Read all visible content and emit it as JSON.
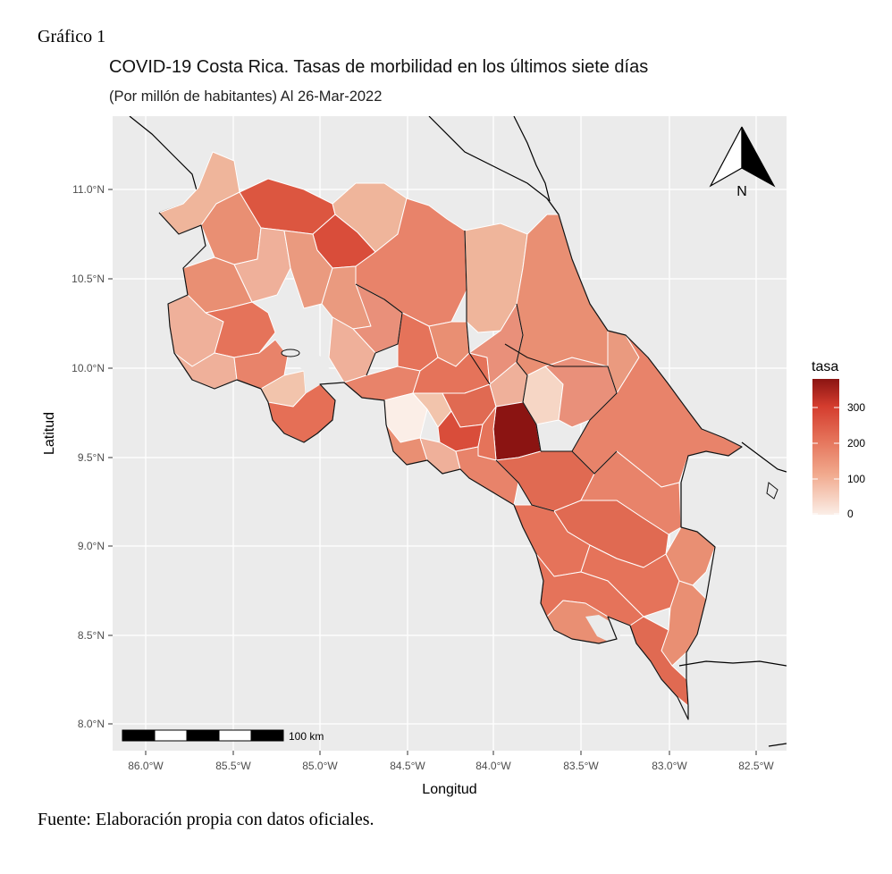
{
  "figure": {
    "label": "Gráfico 1",
    "source": "Fuente: Elaboración propia con datos oficiales."
  },
  "map": {
    "title": "COVID-19 Costa Rica. Tasas de morbilidad en los últimos siete días",
    "subtitle": "(Por millón de habitantes) Al 26-Mar-2022",
    "x_axis": {
      "label": "Longitud",
      "ticks": [
        "86.0°W",
        "85.5°W",
        "85.0°W",
        "84.5°W",
        "84.0°W",
        "83.5°W",
        "83.0°W",
        "82.5°W"
      ]
    },
    "y_axis": {
      "label": "Latitud",
      "ticks": [
        "11.0°N",
        "10.5°N",
        "10.0°N",
        "9.5°N",
        "9.0°N",
        "8.5°N",
        "8.0°N"
      ]
    },
    "legend": {
      "title": "tasa",
      "ticks": [
        "300",
        "200",
        "100",
        "0"
      ],
      "color_low": "#fbeee7",
      "color_high": "#8b1412",
      "placement": "right"
    },
    "scale_bar": {
      "label": "100 km"
    },
    "north_arrow": {
      "label": "N",
      "icon": "north-arrow-icon"
    },
    "background": "#ebebeb",
    "grid": true
  }
}
